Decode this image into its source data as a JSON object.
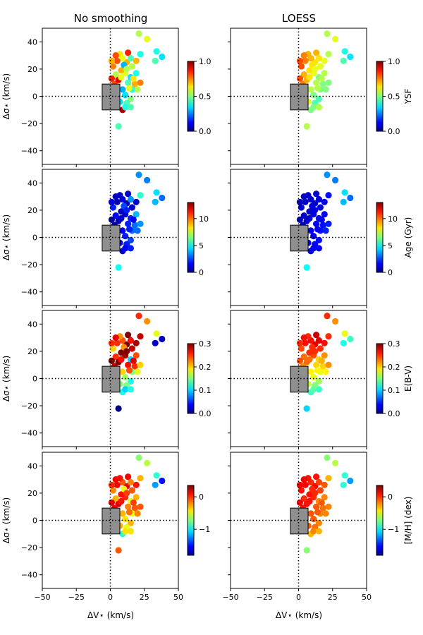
{
  "figure": {
    "column_titles": [
      "No smoothing",
      "LOESS"
    ],
    "xlabel": "ΔV⋆ (km/s)",
    "ylabel": "Δσ⋆ (km/s)"
  },
  "chart_data": {
    "type": "scatter",
    "xlim": [
      -50,
      50
    ],
    "ylim": [
      -50,
      50
    ],
    "xticks": [
      -50,
      -25,
      0,
      25,
      50
    ],
    "yticks": [
      -40,
      -20,
      0,
      20,
      40
    ],
    "reference_lines": {
      "x": 0,
      "y": 0,
      "style": "dotted"
    },
    "grey_box": {
      "x": [
        -6,
        7
      ],
      "y": [
        -10,
        9
      ]
    },
    "colormap": "jet",
    "panels": [
      {
        "quantity": "YSF",
        "clabel": "YSF",
        "range": [
          0,
          1
        ],
        "ticks": [
          "0.0",
          "0.5",
          "1.0"
        ],
        "tick_values": [
          0,
          0.5,
          1
        ]
      },
      {
        "quantity": "Age",
        "clabel": "Age (Gyr)",
        "range": [
          0,
          13
        ],
        "ticks": [
          "0",
          "5",
          "10"
        ],
        "tick_values": [
          0,
          5,
          10
        ]
      },
      {
        "quantity": "E(B-V)",
        "clabel": "E(B-V)",
        "range": [
          0,
          0.3
        ],
        "ticks": [
          "0.0",
          "0.1",
          "0.2",
          "0.3"
        ],
        "tick_values": [
          0,
          0.1,
          0.2,
          0.3
        ]
      },
      {
        "quantity": "[M/H]",
        "clabel": "[M/H] (dex)",
        "range": [
          -1.8,
          0.35
        ],
        "ticks": [
          "−1",
          "0"
        ],
        "tick_values": [
          -1,
          0
        ]
      }
    ],
    "points": [
      {
        "x": 21,
        "y": 46,
        "c": [
          0.55,
          3.5,
          0.25,
          -0.7
        ],
        "s": [
          0.55,
          3.5,
          0.25,
          -0.7
        ]
      },
      {
        "x": 27,
        "y": 42,
        "c": [
          0.6,
          3.2,
          0.22,
          -0.6
        ],
        "s": [
          0.6,
          3.2,
          0.22,
          -0.6
        ]
      },
      {
        "x": 34,
        "y": 33,
        "c": [
          0.4,
          4.5,
          0.18,
          -0.9
        ],
        "s": [
          0.4,
          4.5,
          0.18,
          -0.9
        ]
      },
      {
        "x": 38,
        "y": 29,
        "c": [
          0.35,
          3.0,
          0.02,
          -1.5
        ],
        "s": [
          0.35,
          3.0,
          0.13,
          -1.2
        ]
      },
      {
        "x": 33,
        "y": 26,
        "c": [
          0.45,
          4.0,
          0.02,
          -1.2
        ],
        "s": [
          0.45,
          4.0,
          0.12,
          -0.9
        ]
      },
      {
        "x": 22,
        "y": 31,
        "c": [
          0.4,
          5.5,
          0.28,
          -0.3
        ],
        "s": [
          0.55,
          1.8,
          0.25,
          -0.3
        ]
      },
      {
        "x": 13,
        "y": 32,
        "c": [
          0.85,
          1.0,
          0.3,
          0.1
        ],
        "s": [
          0.7,
          1.0,
          0.28,
          0.05
        ]
      },
      {
        "x": 12,
        "y": 25,
        "c": [
          0.7,
          0.5,
          0.3,
          0.1
        ],
        "s": [
          0.65,
          0.9,
          0.27,
          0.1
        ]
      },
      {
        "x": 9,
        "y": 28,
        "c": [
          0.6,
          1.2,
          0.24,
          -0.1
        ],
        "s": [
          0.7,
          1.0,
          0.26,
          0.0
        ]
      },
      {
        "x": 7,
        "y": 31,
        "c": [
          0.65,
          1.0,
          0.22,
          0.05
        ],
        "s": [
          0.7,
          1.0,
          0.25,
          0.05
        ]
      },
      {
        "x": 5,
        "y": 26,
        "c": [
          0.8,
          0.5,
          0.25,
          0.1
        ],
        "s": [
          0.75,
          0.8,
          0.26,
          0.1
        ]
      },
      {
        "x": 2,
        "y": 22,
        "c": [
          0.75,
          2.0,
          0.2,
          -0.2
        ],
        "s": [
          0.8,
          1.0,
          0.24,
          0.05
        ]
      },
      {
        "x": 16,
        "y": 22,
        "c": [
          0.55,
          1.0,
          0.28,
          -0.1
        ],
        "s": [
          0.6,
          1.2,
          0.25,
          -0.05
        ]
      },
      {
        "x": 19,
        "y": 17,
        "c": [
          0.4,
          4.0,
          0.24,
          -0.3
        ],
        "s": [
          0.55,
          1.5,
          0.22,
          -0.2
        ]
      },
      {
        "x": 15,
        "y": 14,
        "c": [
          0.35,
          2.0,
          0.1,
          -0.5
        ],
        "s": [
          0.5,
          1.5,
          0.2,
          -0.2
        ]
      },
      {
        "x": 11,
        "y": 17,
        "c": [
          0.6,
          1.0,
          0.29,
          0.0
        ],
        "s": [
          0.6,
          1.2,
          0.24,
          0.0
        ]
      },
      {
        "x": 8,
        "y": 19,
        "c": [
          0.7,
          0.8,
          0.3,
          0.05
        ],
        "s": [
          0.65,
          1.0,
          0.25,
          0.05
        ]
      },
      {
        "x": 4,
        "y": 16,
        "c": [
          0.55,
          1.5,
          0.25,
          -0.3
        ],
        "s": [
          0.7,
          1.0,
          0.23,
          0.0
        ]
      },
      {
        "x": 1,
        "y": 13,
        "c": [
          0.85,
          0.5,
          0.3,
          0.15
        ],
        "s": [
          0.8,
          0.8,
          0.24,
          0.1
        ]
      },
      {
        "x": 13,
        "y": 10,
        "c": [
          0.45,
          2.0,
          0.26,
          -0.2
        ],
        "s": [
          0.55,
          1.5,
          0.2,
          -0.1
        ]
      },
      {
        "x": 18,
        "y": 9,
        "c": [
          0.7,
          3.0,
          0.25,
          -0.1
        ],
        "s": [
          0.5,
          1.8,
          0.2,
          -0.15
        ]
      },
      {
        "x": 22,
        "y": 10,
        "c": [
          0.75,
          3.5,
          0.2,
          -0.1
        ],
        "s": [
          0.5,
          2.0,
          0.22,
          -0.2
        ]
      },
      {
        "x": 16,
        "y": 5,
        "c": [
          0.4,
          3.0,
          0.15,
          -0.5
        ],
        "s": [
          0.5,
          1.8,
          0.18,
          -0.2
        ]
      },
      {
        "x": 9,
        "y": 5,
        "c": [
          0.3,
          1.5,
          0.2,
          -0.3
        ],
        "s": [
          0.55,
          1.2,
          0.19,
          -0.1
        ]
      },
      {
        "x": 11,
        "y": 1,
        "c": [
          0.35,
          2.0,
          0.16,
          -0.4
        ],
        "s": [
          0.5,
          1.5,
          0.18,
          -0.1
        ]
      },
      {
        "x": 15,
        "y": -2,
        "c": [
          0.5,
          2.5,
          0.12,
          -0.3
        ],
        "s": [
          0.45,
          1.8,
          0.16,
          -0.2
        ]
      },
      {
        "x": 12,
        "y": -5,
        "c": [
          0.45,
          2.0,
          0.15,
          -0.5
        ],
        "s": [
          0.45,
          1.5,
          0.15,
          -0.15
        ]
      },
      {
        "x": 9,
        "y": -10,
        "c": [
          0.95,
          1.0,
          0.12,
          -0.9
        ],
        "s": [
          0.5,
          1.2,
          0.13,
          -0.3
        ]
      },
      {
        "x": 11,
        "y": -8,
        "c": [
          0.4,
          1.5,
          0.1,
          -0.4
        ],
        "s": [
          0.5,
          1.3,
          0.14,
          -0.2
        ]
      },
      {
        "x": 15,
        "y": -8,
        "c": [
          0.45,
          2.0,
          0.12,
          -0.4
        ],
        "s": [
          0.55,
          1.5,
          0.13,
          -0.3
        ]
      },
      {
        "x": 6,
        "y": -22,
        "c": [
          0.45,
          5.0,
          0.0,
          -0.1
        ],
        "s": [
          0.55,
          5.0,
          0.1,
          -0.7
        ]
      },
      {
        "x": 3,
        "y": 9,
        "c": [
          0.8,
          0.5,
          0.28,
          0.1
        ],
        "s": [
          0.75,
          0.9,
          0.22,
          0.05
        ]
      },
      {
        "x": 1,
        "y": 4,
        "c": [
          0.7,
          1.0,
          0.29,
          0.0
        ],
        "s": [
          0.75,
          0.9,
          0.2,
          0.05
        ]
      },
      {
        "x": 2,
        "y": -3,
        "c": [
          0.8,
          0.5,
          0.22,
          0.1
        ],
        "s": [
          0.7,
          1.0,
          0.18,
          0.0
        ]
      },
      {
        "x": 1,
        "y": -8,
        "c": [
          0.75,
          1.0,
          0.25,
          0.1
        ],
        "s": [
          0.7,
          1.0,
          0.17,
          0.0
        ]
      },
      {
        "x": 5,
        "y": 2,
        "c": [
          0.4,
          2.0,
          0.2,
          -0.4
        ],
        "s": [
          0.65,
          1.2,
          0.2,
          -0.05
        ]
      },
      {
        "x": 19,
        "y": 26,
        "c": [
          0.7,
          1.0,
          0.29,
          0.05
        ],
        "s": [
          0.6,
          1.5,
          0.26,
          -0.1
        ]
      },
      {
        "x": 10,
        "y": 23,
        "c": [
          0.3,
          2.5,
          0.22,
          -0.5
        ],
        "s": [
          0.65,
          1.1,
          0.25,
          0.0
        ]
      },
      {
        "x": 6,
        "y": 12,
        "c": [
          0.9,
          0.5,
          0.3,
          0.15
        ],
        "s": [
          0.7,
          1.0,
          0.23,
          0.05
        ]
      },
      {
        "x": 17,
        "y": 13,
        "c": [
          0.65,
          1.5,
          0.27,
          -0.05
        ],
        "s": [
          0.55,
          1.5,
          0.21,
          -0.1
        ]
      },
      {
        "x": 20,
        "y": 5,
        "c": [
          0.55,
          3.0,
          0.18,
          -0.2
        ],
        "s": [
          0.5,
          2.0,
          0.19,
          -0.2
        ]
      },
      {
        "x": 14,
        "y": 6,
        "c": [
          0.6,
          2.0,
          0.24,
          -0.15
        ],
        "s": [
          0.55,
          1.6,
          0.19,
          -0.1
        ]
      },
      {
        "x": 7,
        "y": -4,
        "c": [
          0.35,
          1.5,
          0.15,
          -0.3
        ],
        "s": [
          0.6,
          1.2,
          0.17,
          -0.1
        ]
      },
      {
        "x": 4,
        "y": 30,
        "c": [
          0.8,
          0.8,
          0.27,
          0.1
        ],
        "s": [
          0.75,
          0.9,
          0.26,
          0.1
        ]
      },
      {
        "x": 1,
        "y": 26,
        "c": [
          0.7,
          1.2,
          0.25,
          0.0
        ],
        "s": [
          0.8,
          0.8,
          0.25,
          0.1
        ]
      },
      {
        "x": 15,
        "y": 28,
        "c": [
          0.45,
          3.5,
          0.26,
          -0.2
        ],
        "s": [
          0.65,
          1.2,
          0.27,
          -0.05
        ]
      },
      {
        "x": 12,
        "y": 20,
        "c": [
          0.55,
          2.0,
          0.3,
          -0.05
        ],
        "s": [
          0.6,
          1.2,
          0.25,
          0.0
        ]
      },
      {
        "x": 8,
        "y": 14,
        "c": [
          0.6,
          1.0,
          0.26,
          0.05
        ],
        "s": [
          0.65,
          1.0,
          0.23,
          0.05
        ]
      }
    ]
  }
}
